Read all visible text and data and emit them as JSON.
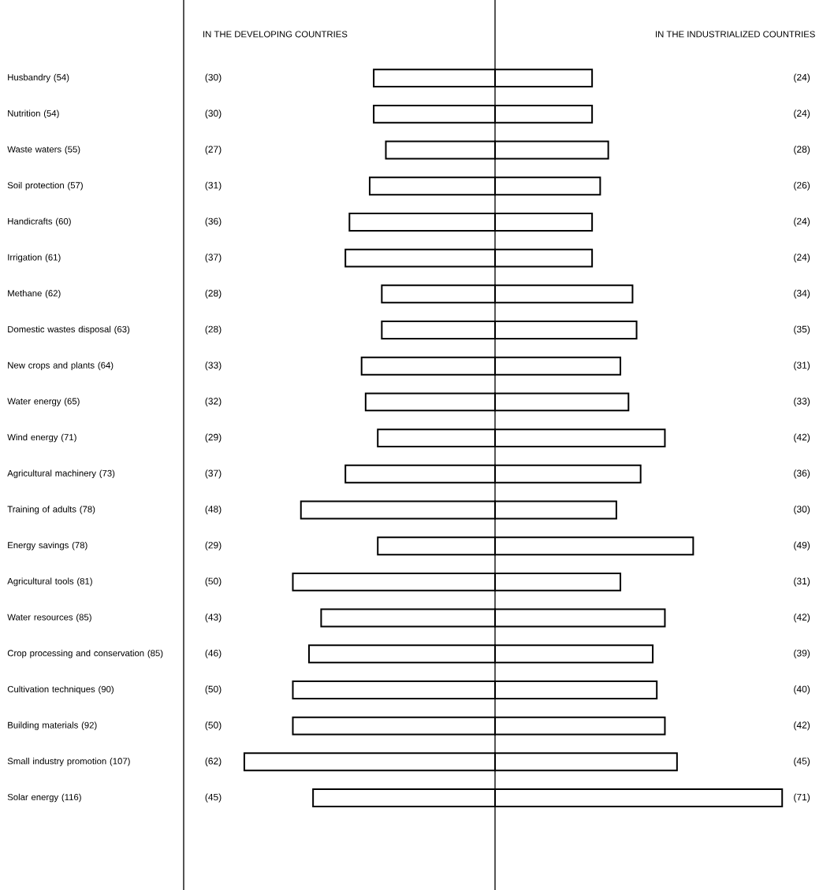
{
  "chart_data": [
    {
      "type": "bar",
      "orientation": "horizontal",
      "title": "IN THE DEVELOPING COUNTRIES",
      "tick_labels": "y",
      "categories": [
        "Husbandry (54)",
        "Nutrition (54)",
        "Waste waters (55)",
        "Soil protection (57)",
        "Handicrafts (60)",
        "Irrigation (61)",
        "Methane (62)",
        "Domestic wastes disposal (63)",
        "New crops and plants (64)",
        "Water energy (65)",
        "Wind energy (71)",
        "Agricultural machinery (73)",
        "Training of adults (78)",
        "Energy savings (78)",
        "Agricultural tools (81)",
        "Water resources (85)",
        "Crop processing and conservation (85)",
        "Cultivation techniques (90)",
        "Building materials (92)",
        "Small industry promotion (107)",
        "Solar energy (116)"
      ],
      "values": [
        30,
        30,
        27,
        31,
        36,
        37,
        28,
        28,
        33,
        32,
        29,
        37,
        48,
        29,
        50,
        43,
        46,
        50,
        50,
        62,
        45
      ],
      "value_labels": [
        "(30)",
        "(30)",
        "(27)",
        "(31)",
        "(36)",
        "(37)",
        "(28)",
        "(28)",
        "(33)",
        "(32)",
        "(29)",
        "(37)",
        "(48)",
        "(29)",
        "(50)",
        "(43)",
        "(46)",
        "(50)",
        "(50)",
        "(62)",
        "(45)"
      ],
      "color": "#ffffff"
    },
    {
      "type": "bar",
      "orientation": "horizontal",
      "title": "IN THE INDUSTRIALIZED COUNTRIES",
      "tick_labels": false,
      "categories": [
        null,
        null,
        null,
        null,
        null,
        null,
        null,
        null,
        null,
        null,
        null,
        null,
        null,
        null,
        null,
        null,
        null,
        null,
        null,
        null,
        null
      ],
      "values": [
        24,
        24,
        28,
        26,
        24,
        24,
        34,
        35,
        31,
        33,
        42,
        36,
        30,
        49,
        31,
        42,
        39,
        40,
        42,
        45,
        71
      ],
      "value_labels": [
        "(24)",
        "(24)",
        "(28)",
        "(26)",
        "(24)",
        "(24)",
        "(34)",
        "(35)",
        "(31)",
        "(33)",
        "(42)",
        "(36)",
        "(30)",
        "(49)",
        "(31)",
        "(42)",
        "(39)",
        "(40)",
        "(42)",
        "(45)",
        "(71)"
      ],
      "color": "#ffffff"
    }
  ]
}
